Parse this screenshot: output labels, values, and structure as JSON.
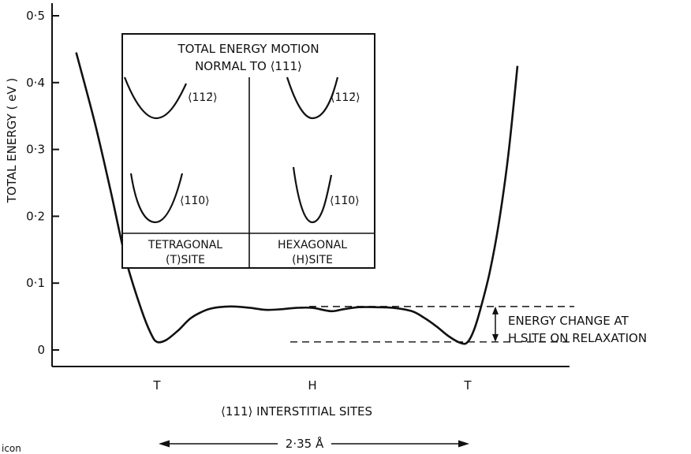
{
  "chart_data": {
    "type": "line",
    "title": "",
    "ylabel": "TOTAL ENERGY ( eV )",
    "xlabel": "⟨111⟩ INTERSTITIAL SITES",
    "ylim": [
      0,
      0.5
    ],
    "y_ticks": [
      {
        "value": 0,
        "label": "0"
      },
      {
        "value": 0.1,
        "label": "0·1"
      },
      {
        "value": 0.2,
        "label": "0·2"
      },
      {
        "value": 0.3,
        "label": "0·3"
      },
      {
        "value": 0.4,
        "label": "0·4"
      },
      {
        "value": 0.5,
        "label": "0·5"
      }
    ],
    "x_ticks": [
      {
        "x": 0,
        "label": "T"
      },
      {
        "x": 0.5,
        "label": "H"
      },
      {
        "x": 1,
        "label": "T"
      }
    ],
    "xlim": [
      -0.28,
      1.18
    ],
    "grid": false,
    "series": [
      {
        "x": [
          -0.26,
          -0.2,
          -0.15,
          -0.1,
          -0.05,
          -0.02,
          0,
          0.03,
          0.07,
          0.11,
          0.16,
          0.2,
          0.25,
          0.3,
          0.35,
          0.4,
          0.45,
          0.5,
          0.56,
          0.6,
          0.65,
          0.7,
          0.76,
          0.82,
          0.86,
          0.9,
          0.94,
          0.98,
          1.0,
          1.02,
          1.04,
          1.07,
          1.1,
          1.13,
          1.16
        ],
        "y": [
          0.445,
          0.34,
          0.24,
          0.135,
          0.06,
          0.025,
          0.012,
          0.015,
          0.03,
          0.048,
          0.06,
          0.064,
          0.065,
          0.063,
          0.06,
          0.061,
          0.063,
          0.063,
          0.058,
          0.061,
          0.064,
          0.064,
          0.063,
          0.058,
          0.048,
          0.035,
          0.02,
          0.01,
          0.012,
          0.03,
          0.06,
          0.115,
          0.19,
          0.29,
          0.425
        ]
      }
    ],
    "annotations": {
      "energy_change": {
        "upper_y": 0.065,
        "lower_y": 0.012,
        "label_line1": "ENERGY CHANGE AT",
        "label_line2": "H SITE ON RELAXATION"
      },
      "scale_bar": {
        "label": "2·35 Å"
      }
    },
    "inset": {
      "title_line1": "TOTAL ENERGY MOTION",
      "title_line2": "NORMAL TO ⟨111⟩",
      "panels": [
        {
          "site_line1": "TETRAGONAL",
          "site_line2": "(T)SITE",
          "upper_label": "⟨112̄⟩",
          "lower_label": "⟨11̄0⟩"
        },
        {
          "site_line1": "HEXAGONAL",
          "site_line2": "(H)SITE",
          "upper_label": "⟨112̄⟩",
          "lower_label": "⟨11̄0⟩"
        }
      ]
    }
  },
  "corner_text": "icon"
}
